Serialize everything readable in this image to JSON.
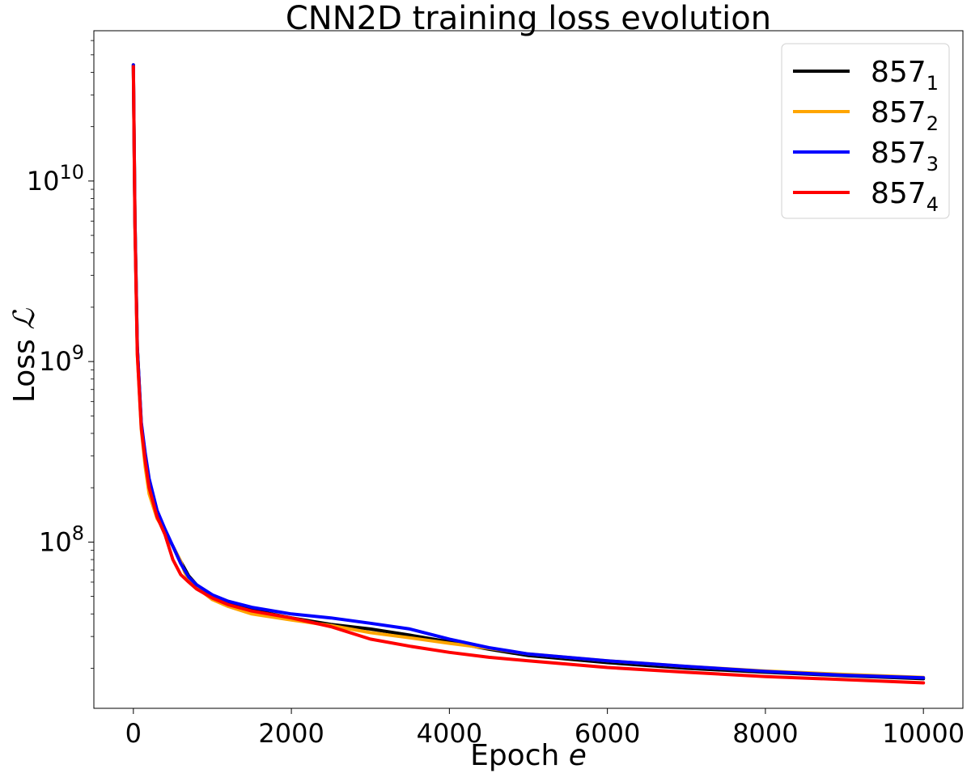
{
  "chart_data": {
    "type": "line",
    "title": "CNN2D training loss evolution",
    "xlabel": {
      "main": "Epoch ",
      "var": "e"
    },
    "ylabel": {
      "main": "Loss ",
      "var": "ℒ"
    },
    "xscale": "linear",
    "yscale": "log",
    "xlim": [
      -500,
      10500
    ],
    "ylim": [
      12000000.0,
      68000000000.0
    ],
    "x_ticks": [
      {
        "value": 0,
        "label": "0"
      },
      {
        "value": 2000,
        "label": "2000"
      },
      {
        "value": 4000,
        "label": "4000"
      },
      {
        "value": 6000,
        "label": "6000"
      },
      {
        "value": 8000,
        "label": "8000"
      },
      {
        "value": 10000,
        "label": "10000"
      }
    ],
    "y_ticks": [
      {
        "value": 100000000.0,
        "base": "10",
        "exp": "8"
      },
      {
        "value": 1000000000.0,
        "base": "10",
        "exp": "9"
      },
      {
        "value": 10000000000.0,
        "base": "10",
        "exp": "10"
      }
    ],
    "grid": false,
    "legend_position": "top-right",
    "series": [
      {
        "name": "857",
        "subscript": "1",
        "color": "#000000",
        "x": [
          0,
          20,
          50,
          100,
          150,
          200,
          300,
          400,
          500,
          600,
          700,
          800,
          1000,
          1200,
          1500,
          2000,
          2500,
          3000,
          3500,
          4000,
          4500,
          5000,
          6000,
          7000,
          8000,
          9000,
          10000
        ],
        "y": [
          44000000000.0,
          6000000000.0,
          1200000000.0,
          450000000.0,
          300000000.0,
          220000000.0,
          145000000.0,
          112000000.0,
          95000000.0,
          78000000.0,
          65000000.0,
          58000000.0,
          50000000.0,
          46000000.0,
          42000000.0,
          38000000.0,
          35000000.0,
          33000000.0,
          30500000.0,
          28000000.0,
          25500000.0,
          23500000.0,
          21500000.0,
          20000000.0,
          19000000.0,
          18200000.0,
          17500000.0
        ]
      },
      {
        "name": "857",
        "subscript": "2",
        "color": "#ffa500",
        "x": [
          0,
          20,
          50,
          100,
          150,
          200,
          300,
          400,
          500,
          600,
          650,
          700,
          800,
          1000,
          1200,
          1500,
          2000,
          2500,
          3000,
          3500,
          4000,
          4500,
          5000,
          6000,
          7000,
          8000,
          9000,
          10000
        ],
        "y": [
          44000000000.0,
          6000000000.0,
          1100000000.0,
          420000000.0,
          260000000.0,
          185000000.0,
          135000000.0,
          115000000.0,
          95000000.0,
          78000000.0,
          68000000.0,
          62000000.0,
          56000000.0,
          48000000.0,
          44000000.0,
          40000000.0,
          37000000.0,
          34500000.0,
          31500000.0,
          29500000.0,
          27500000.0,
          25800000.0,
          24000000.0,
          22000000.0,
          20500000.0,
          19300000.0,
          18500000.0,
          17800000.0
        ]
      },
      {
        "name": "857",
        "subscript": "3",
        "color": "#0000ff",
        "x": [
          0,
          20,
          50,
          100,
          150,
          200,
          300,
          400,
          500,
          600,
          700,
          800,
          1000,
          1200,
          1500,
          2000,
          2500,
          3000,
          3500,
          4000,
          4500,
          5000,
          6000,
          7000,
          8000,
          9000,
          10000
        ],
        "y": [
          44000000000.0,
          6000000000.0,
          1200000000.0,
          460000000.0,
          310000000.0,
          225000000.0,
          150000000.0,
          118000000.0,
          95000000.0,
          76000000.0,
          64000000.0,
          58000000.0,
          51000000.0,
          47000000.0,
          43500000.0,
          40000000.0,
          38000000.0,
          35500000.0,
          33000000.0,
          29000000.0,
          26000000.0,
          24000000.0,
          22000000.0,
          20500000.0,
          19200000.0,
          18300000.0,
          17700000.0
        ]
      },
      {
        "name": "857",
        "subscript": "4",
        "color": "#ff0000",
        "x": [
          0,
          20,
          50,
          100,
          150,
          200,
          300,
          400,
          500,
          600,
          700,
          800,
          1000,
          1200,
          1500,
          2000,
          2500,
          3000,
          3500,
          4000,
          4500,
          5000,
          6000,
          7000,
          8000,
          9000,
          10000
        ],
        "y": [
          43000000000.0,
          5500000000.0,
          1100000000.0,
          430000000.0,
          280000000.0,
          200000000.0,
          138000000.0,
          110000000.0,
          80000000.0,
          66000000.0,
          60000000.0,
          55000000.0,
          49000000.0,
          45000000.0,
          41500000.0,
          38000000.0,
          34000000.0,
          29000000.0,
          26500000.0,
          24500000.0,
          23000000.0,
          22000000.0,
          20200000.0,
          19000000.0,
          18000000.0,
          17300000.0,
          16600000.0
        ]
      }
    ]
  }
}
